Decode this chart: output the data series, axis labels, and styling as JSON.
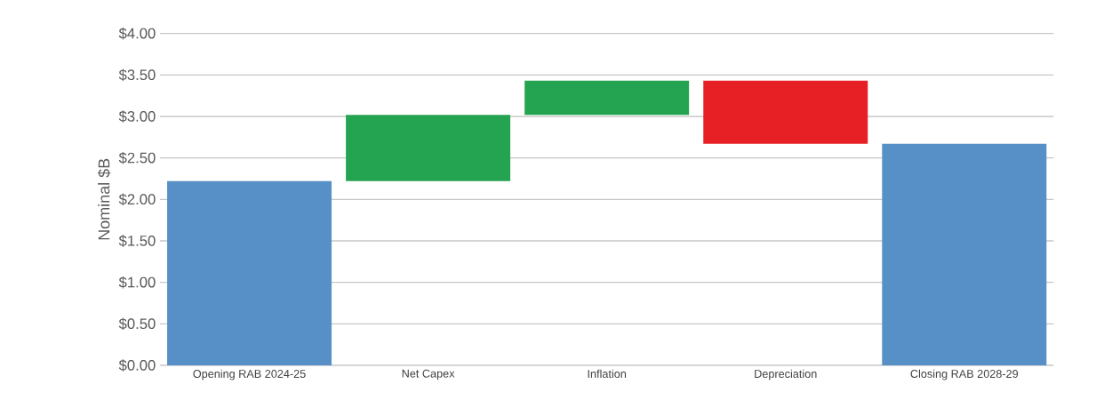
{
  "chart_data": {
    "type": "bar",
    "ylabel": "Nominal $B",
    "categories": [
      "Opening RAB 2024-25",
      "Net Capex",
      "Inflation",
      "Depreciation",
      "Closing RAB  2028-29"
    ],
    "values": [
      2.22,
      0.8,
      0.41,
      -0.76,
      2.67
    ],
    "base": [
      0,
      2.22,
      3.02,
      3.43,
      0
    ],
    "colors": [
      "#5690c6",
      "#24a450",
      "#24a450",
      "#e62024",
      "#5690c6"
    ],
    "ylim": [
      0,
      4
    ],
    "yticks": [
      {
        "value": 0,
        "label": "$0.00"
      },
      {
        "value": 0.5,
        "label": "$0.50"
      },
      {
        "value": 1,
        "label": "$1.00"
      },
      {
        "value": 1.5,
        "label": "$1.50"
      },
      {
        "value": 2,
        "label": "$2.00"
      },
      {
        "value": 2.5,
        "label": "$2.50"
      },
      {
        "value": 3,
        "label": "$3.00"
      },
      {
        "value": 3.5,
        "label": "$3.50"
      },
      {
        "value": 4,
        "label": "$4.00"
      }
    ],
    "grid": "y"
  }
}
